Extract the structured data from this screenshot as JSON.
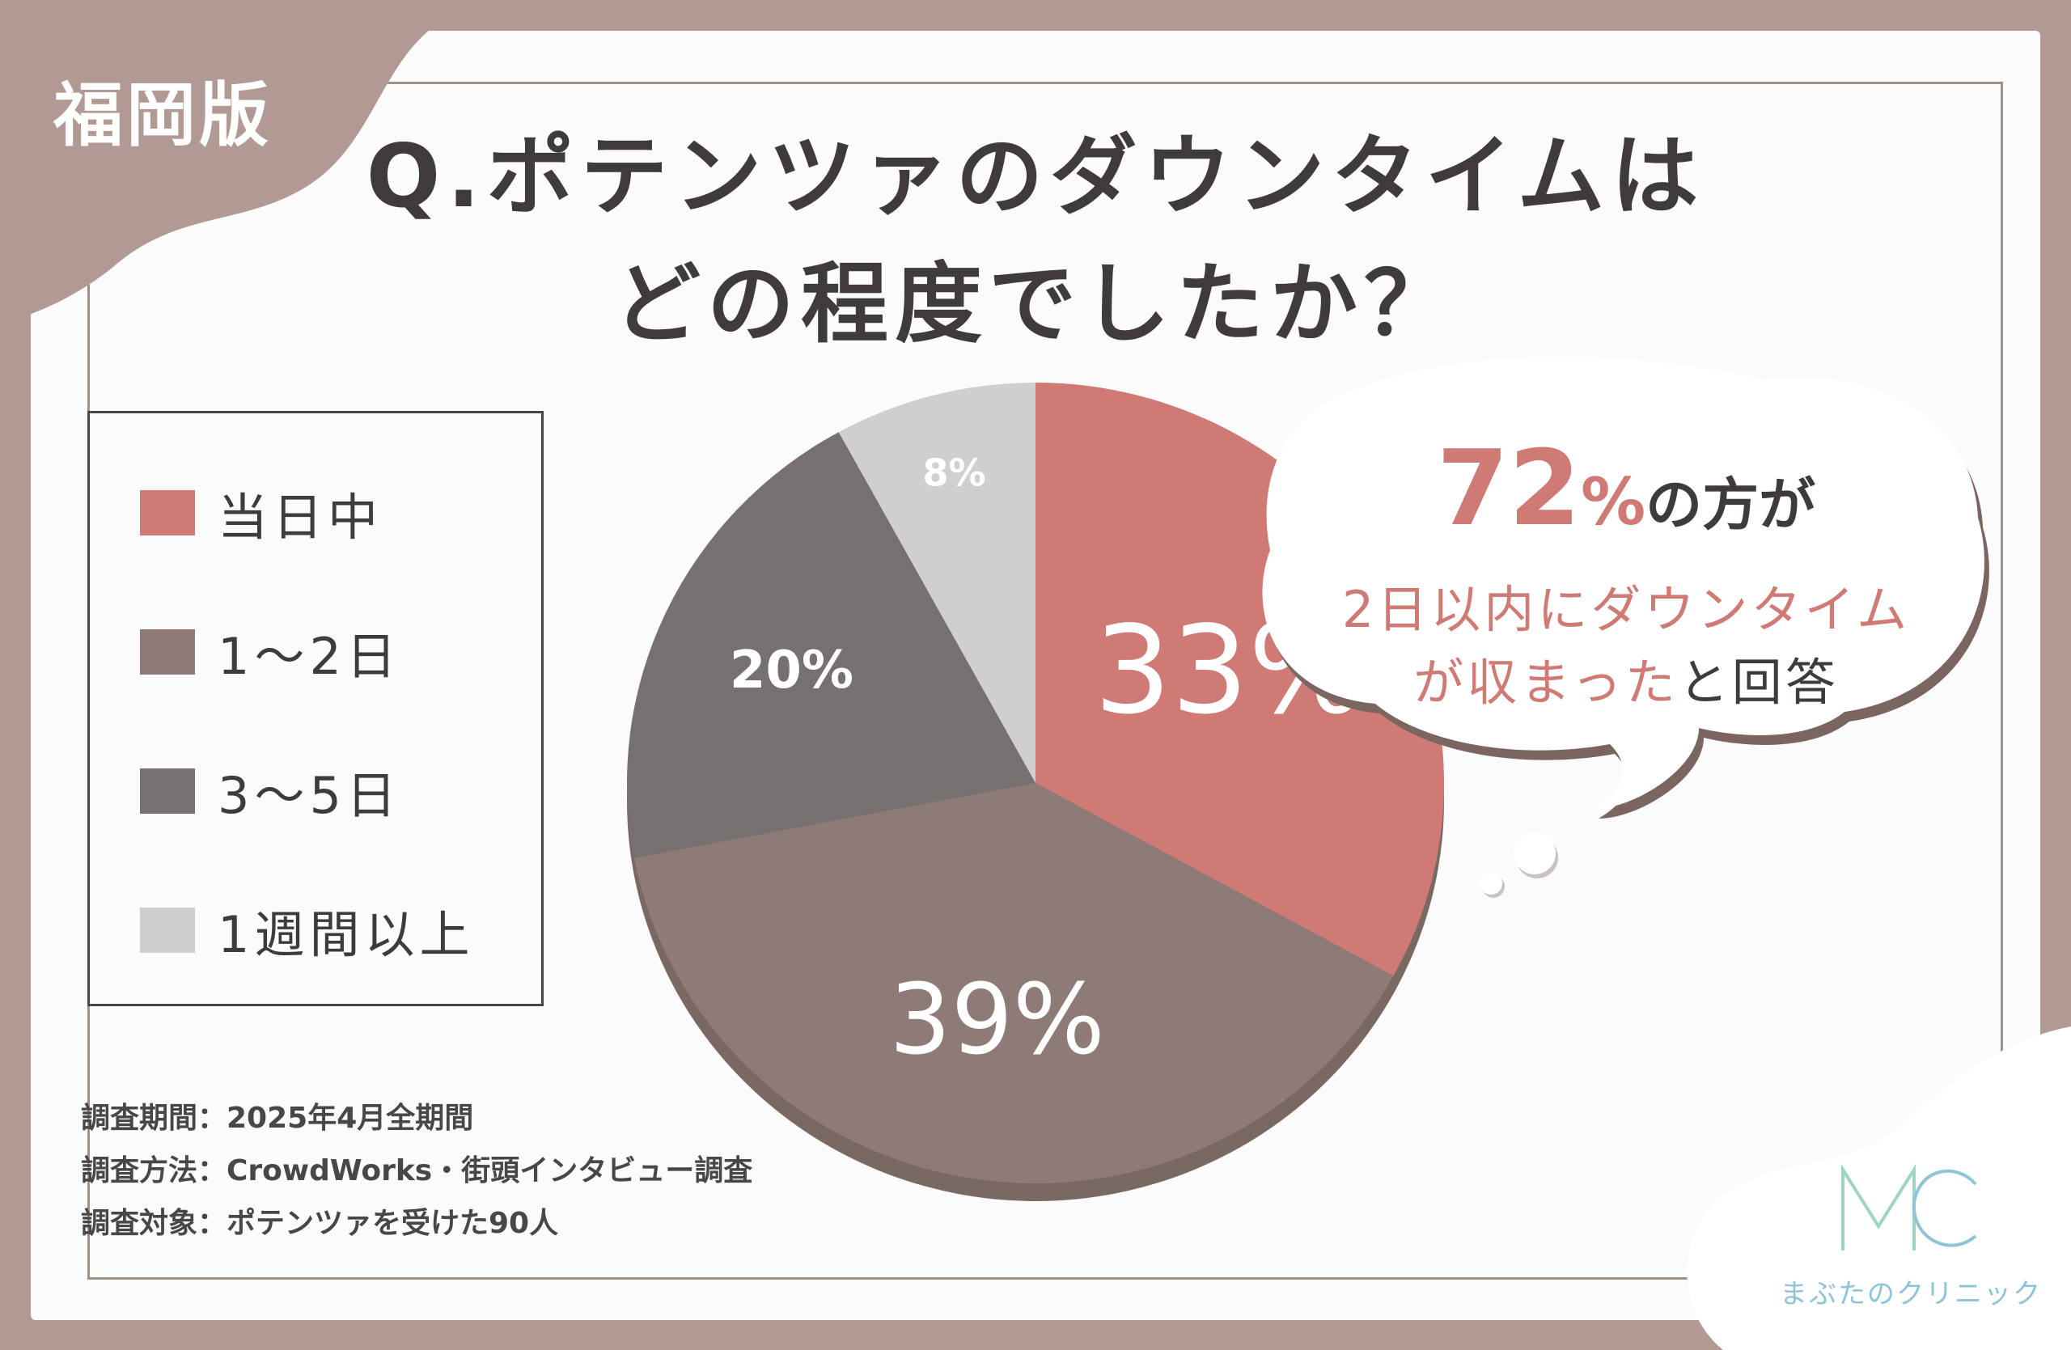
{
  "badge": "福岡版",
  "title": {
    "line1": "Q.ポテンツァのダウンタイムは",
    "line2": "どの程度でしたか？"
  },
  "legend": [
    {
      "label": "当日中",
      "color": "#cf7a74"
    },
    {
      "label": "1～2日",
      "color": "#8e7b77"
    },
    {
      "label": "3～5日",
      "color": "#767170"
    },
    {
      "label": "1週間以上",
      "color": "#cfcfcf"
    }
  ],
  "chart_data": {
    "type": "pie",
    "categories": [
      "当日中",
      "1～2日",
      "3～5日",
      "1週間以上"
    ],
    "values": [
      33,
      39,
      20,
      8
    ],
    "labels": [
      "33%",
      "39%",
      "20%",
      "8%"
    ],
    "colors": [
      "#cf7a74",
      "#8e7b77",
      "#767170",
      "#cfcfcf"
    ]
  },
  "bubble": {
    "big_number": "72",
    "big_unit": "%",
    "big_rest": "の方が",
    "line2": "2日以内にダウンタイム",
    "line3_colored": "が収まった",
    "line3_rest": "と回答"
  },
  "survey": {
    "period": "調査期間：2025年4月全期間",
    "method": "調査方法：CrowdWorks・街頭インタビュー調査",
    "target": "調査対象：ポテンツァを受けた90人"
  },
  "logo": {
    "mark": "MC",
    "text": "まぶたのクリニック",
    "color": "#8fc3d6"
  }
}
